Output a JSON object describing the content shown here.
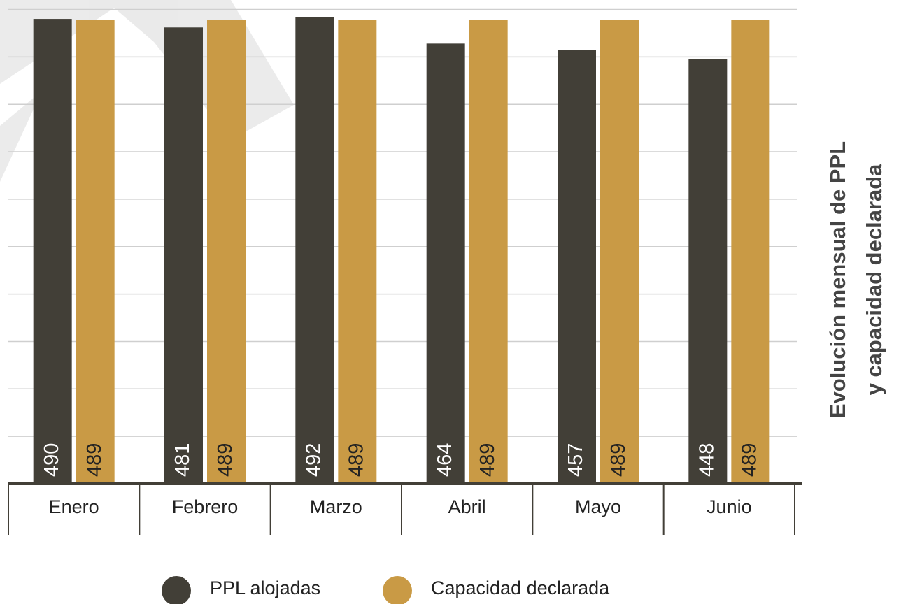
{
  "chart_data": {
    "type": "bar",
    "title": [
      "Evolución mensual de PPL",
      "y capacidad declarada"
    ],
    "categories": [
      "Enero",
      "Febrero",
      "Marzo",
      "Abril",
      "Mayo",
      "Junio"
    ],
    "series": [
      {
        "name": "PPL alojadas",
        "color": "#423f37",
        "values": [
          490,
          481,
          492,
          464,
          457,
          448
        ]
      },
      {
        "name": "Capacidad declarada",
        "color": "#c99a45",
        "values": [
          489,
          489,
          489,
          489,
          489,
          489
        ]
      }
    ],
    "ylim": [
      0,
      500
    ],
    "yticks": [
      50,
      100,
      150,
      200,
      250,
      300,
      350,
      400,
      450,
      500
    ],
    "grid": true,
    "legend": "bottom"
  }
}
